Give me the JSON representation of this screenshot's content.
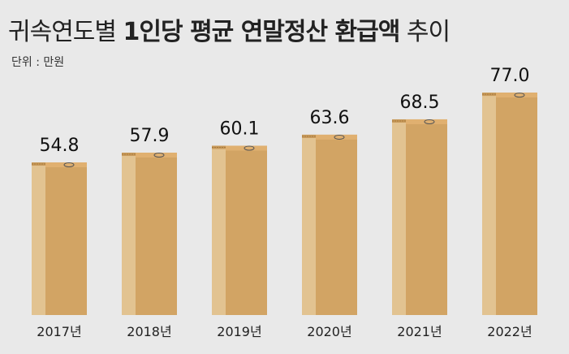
{
  "title": {
    "part1": "귀속연도별 ",
    "part2": "1인당 평균 연말정산 환급액",
    "part3": " 추이"
  },
  "unit_label": "단위 : 만원",
  "chart_data": {
    "type": "bar",
    "categories": [
      "2017년",
      "2018년",
      "2019년",
      "2020년",
      "2021년",
      "2022년"
    ],
    "values": [
      54.8,
      57.9,
      60.1,
      63.6,
      68.5,
      77.0
    ],
    "value_labels": [
      "54.8",
      "57.9",
      "60.1",
      "63.6",
      "68.5",
      "77.0"
    ],
    "title": "귀속연도별 1인당 평균 연말정산 환급액 추이",
    "unit": "단위 : 만원",
    "xlabel": "",
    "ylabel": "",
    "grid": false,
    "colors": {
      "box_front": "#d2a464",
      "box_side": "#e2c391",
      "tape": "#e0b070",
      "background": "#e9e9e9"
    }
  }
}
